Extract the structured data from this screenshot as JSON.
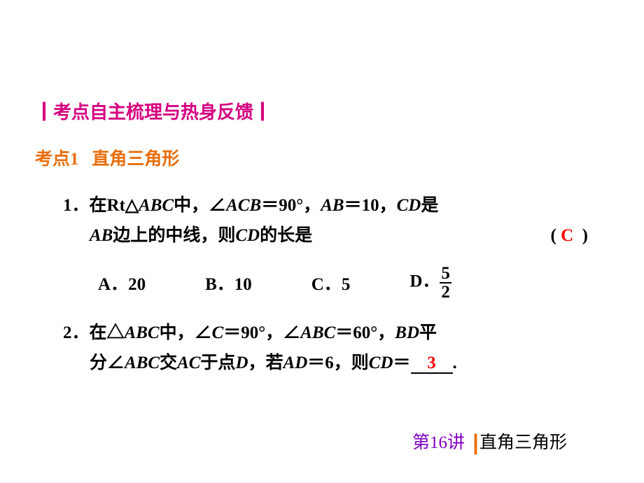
{
  "colors": {
    "magenta": "#d4007f",
    "orange": "#e86e0a",
    "red": "#ff0000",
    "purple": "#8000c0",
    "black": "#000000"
  },
  "sectionHeader": {
    "bar": "┃",
    "text": "考点自主梳理与热身反馈",
    "barEnd": "┃"
  },
  "topic": {
    "label": "考点1",
    "title": "直角三角形"
  },
  "q1": {
    "num": "1．",
    "seg1": "在Rt△",
    "seg2": "ABC",
    "seg3": "中，∠",
    "seg4": "ACB",
    "seg5": "＝90°，",
    "seg6": "AB",
    "seg7": "＝10，",
    "seg8": "CD",
    "seg9": "是",
    "line2a": "AB",
    "line2b": "边上的中线，则",
    "line2c": "CD",
    "line2d": "的长是",
    "paren_open": "(",
    "answer": "C",
    "paren_close": ")",
    "optA_label": "A．",
    "optA_val": "20",
    "optB_label": "B．",
    "optB_val": "10",
    "optC_label": "C．",
    "optC_val": "5",
    "optD_label": "D．",
    "optD_num": "5",
    "optD_den": "2"
  },
  "q2": {
    "num": "2．",
    "seg1": "在△",
    "seg2": "ABC",
    "seg3": "中，∠",
    "seg4": "C",
    "seg5": "＝90°，∠",
    "seg6": "ABC",
    "seg7": "＝60°，",
    "seg8": "BD",
    "seg9": "平",
    "line2a": "分∠",
    "line2b": "ABC",
    "line2c": "交",
    "line2d": "AC",
    "line2e": "于点",
    "line2f": "D",
    "line2g": "，若",
    "line2h": "AD",
    "line2i": "＝6，则",
    "line2j": "CD",
    "line2k": "＝",
    "answer": "3",
    "period": "."
  },
  "footer": {
    "lecture": "第16讲",
    "bar": "┃",
    "title": "直角三角形"
  }
}
